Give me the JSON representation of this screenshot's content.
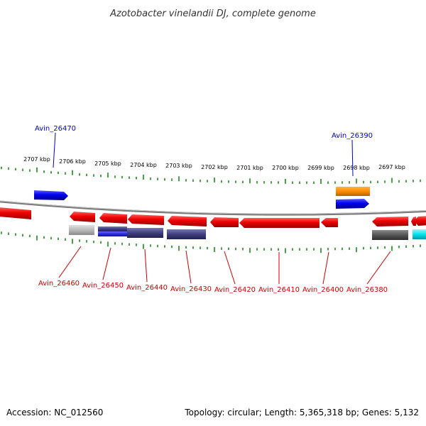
{
  "title": "Azotobacter vinelandii DJ, complete genome",
  "footer": {
    "accession": "Accession: NC_012560",
    "summary": "Topology: circular; Length: 5,365,318 bp; Genes: 5,132"
  },
  "colors": {
    "backbone": "#7a7a7a",
    "ticks": "#1a8a1a",
    "forward_label": "#0000cc",
    "reverse_label": "#cc0000"
  },
  "scale_ticks": [
    "2707 kbp",
    "2706 kbp",
    "2705 kbp",
    "2704 kbp",
    "2703 kbp",
    "2702 kbp",
    "2701 kbp",
    "2700 kbp",
    "2699 kbp",
    "2698 kbp",
    "2697 kbp"
  ],
  "forward_labels": [
    "Avin_26470",
    "Avin_26390"
  ],
  "reverse_labels": [
    "Avin_26460",
    "Avin_26450",
    "Avin_26440",
    "Avin_26430",
    "Avin_26420",
    "Avin_26410",
    "Avin_26400",
    "Avin_26380"
  ],
  "feature_colors": {
    "forward_cds": "#0000ee",
    "reverse_cds": "#ee0000",
    "forward_rna": "#ff8c00",
    "grey_track": "#b8b8b8",
    "blue_track": "#2a2ae6",
    "slate_track": "#3e3e80",
    "dark_track": "#555555",
    "cyan_track": "#00e5ee"
  }
}
